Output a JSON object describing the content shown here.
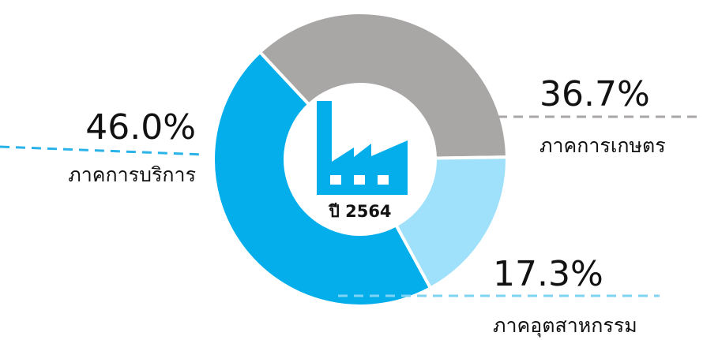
{
  "chart_data": {
    "type": "pie",
    "variant": "donut",
    "center_label": "ปี 2564",
    "center_icon": "factory-icon",
    "slices": [
      {
        "label": "ภาคการบริการ",
        "value": 46.0,
        "value_label": "46.0%",
        "color": "#03aeeb",
        "leader_color": "#29b3e8"
      },
      {
        "label": "ภาคการเกษตร",
        "value": 36.7,
        "value_label": "36.7%",
        "color": "#a9a6a6",
        "leader_color": "#a9a6a6"
      },
      {
        "label": "ภาคอุตสาหกรรม",
        "value": 17.3,
        "value_label": "17.3%",
        "color": "#9fe1fa",
        "leader_color": "#7fd3f3"
      }
    ]
  },
  "colors": {
    "icon": "#03aeeb",
    "separator": "#ffffff"
  }
}
